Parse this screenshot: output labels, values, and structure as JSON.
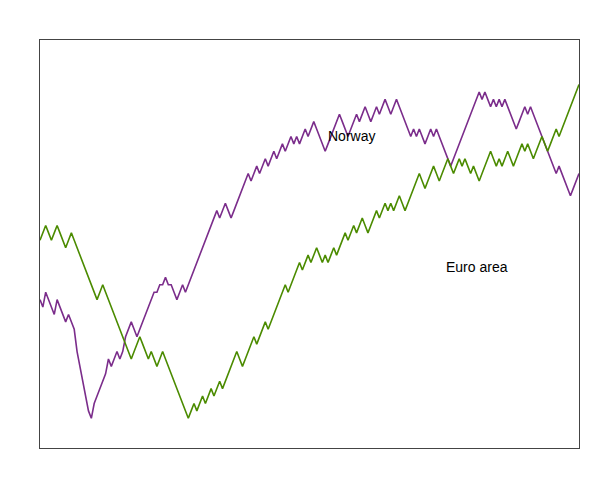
{
  "chart_data": {
    "type": "line",
    "series": [
      {
        "name": "Norway",
        "color": "#7B2D8B",
        "values": [
          95,
          94,
          96,
          95,
          94,
          93,
          95,
          94,
          93,
          92,
          93,
          92,
          91,
          88,
          86,
          84,
          82,
          80,
          79,
          81,
          82,
          83,
          84,
          85,
          87,
          86,
          87,
          88,
          87,
          88,
          90,
          91,
          92,
          91,
          90,
          91,
          92,
          93,
          94,
          95,
          96,
          96,
          97,
          97,
          98,
          97,
          97,
          96,
          95,
          96,
          97,
          96,
          97,
          98,
          99,
          100,
          101,
          102,
          103,
          104,
          105,
          106,
          107,
          106,
          107,
          108,
          107,
          106,
          107,
          108,
          109,
          110,
          111,
          112,
          111,
          112,
          113,
          112,
          113,
          114,
          113,
          114,
          115,
          114,
          115,
          116,
          115,
          116,
          117,
          116,
          117,
          116,
          117,
          118,
          117,
          118,
          119,
          118,
          117,
          116,
          115,
          116,
          117,
          118,
          119,
          120,
          119,
          118,
          117,
          118,
          119,
          120,
          119,
          120,
          121,
          120,
          119,
          120,
          121,
          120,
          121,
          122,
          121,
          120,
          121,
          122,
          121,
          120,
          119,
          118,
          117,
          118,
          117,
          118,
          117,
          116,
          117,
          118,
          117,
          118,
          117,
          116,
          115,
          114,
          113,
          114,
          115,
          116,
          117,
          118,
          119,
          120,
          121,
          122,
          123,
          122,
          123,
          122,
          121,
          122,
          121,
          122,
          121,
          122,
          121,
          120,
          119,
          118,
          119,
          120,
          121,
          120,
          121,
          120,
          119,
          118,
          117,
          116,
          115,
          114,
          113,
          112,
          113,
          112,
          111,
          110,
          109,
          110,
          111,
          112
        ]
      },
      {
        "name": "Euro area",
        "color": "#4B8B00",
        "values": [
          103,
          104,
          105,
          104,
          103,
          104,
          105,
          104,
          103,
          102,
          103,
          104,
          103,
          102,
          101,
          100,
          99,
          98,
          97,
          96,
          95,
          96,
          97,
          96,
          95,
          94,
          93,
          92,
          91,
          90,
          89,
          88,
          87,
          88,
          89,
          90,
          89,
          88,
          87,
          88,
          87,
          86,
          87,
          88,
          87,
          86,
          85,
          84,
          83,
          82,
          81,
          80,
          79,
          80,
          81,
          80,
          81,
          82,
          81,
          82,
          83,
          82,
          83,
          84,
          83,
          84,
          85,
          86,
          87,
          88,
          87,
          86,
          87,
          88,
          89,
          90,
          89,
          90,
          91,
          92,
          91,
          92,
          93,
          94,
          95,
          96,
          97,
          96,
          97,
          98,
          99,
          100,
          99,
          100,
          101,
          100,
          101,
          102,
          101,
          100,
          101,
          100,
          101,
          102,
          101,
          102,
          103,
          104,
          103,
          104,
          105,
          104,
          105,
          106,
          105,
          104,
          105,
          106,
          107,
          106,
          107,
          108,
          107,
          108,
          107,
          108,
          109,
          108,
          107,
          108,
          109,
          110,
          111,
          112,
          111,
          110,
          111,
          112,
          113,
          112,
          111,
          112,
          113,
          114,
          113,
          112,
          113,
          114,
          113,
          114,
          113,
          112,
          113,
          112,
          111,
          112,
          113,
          114,
          115,
          114,
          113,
          114,
          113,
          114,
          115,
          114,
          113,
          114,
          115,
          116,
          115,
          116,
          115,
          114,
          115,
          116,
          117,
          116,
          115,
          116,
          117,
          118,
          117,
          118,
          119,
          120,
          121,
          122,
          123,
          124
        ]
      }
    ],
    "ylim": [
      75,
      130
    ],
    "grid": false,
    "tick_labels": false
  }
}
